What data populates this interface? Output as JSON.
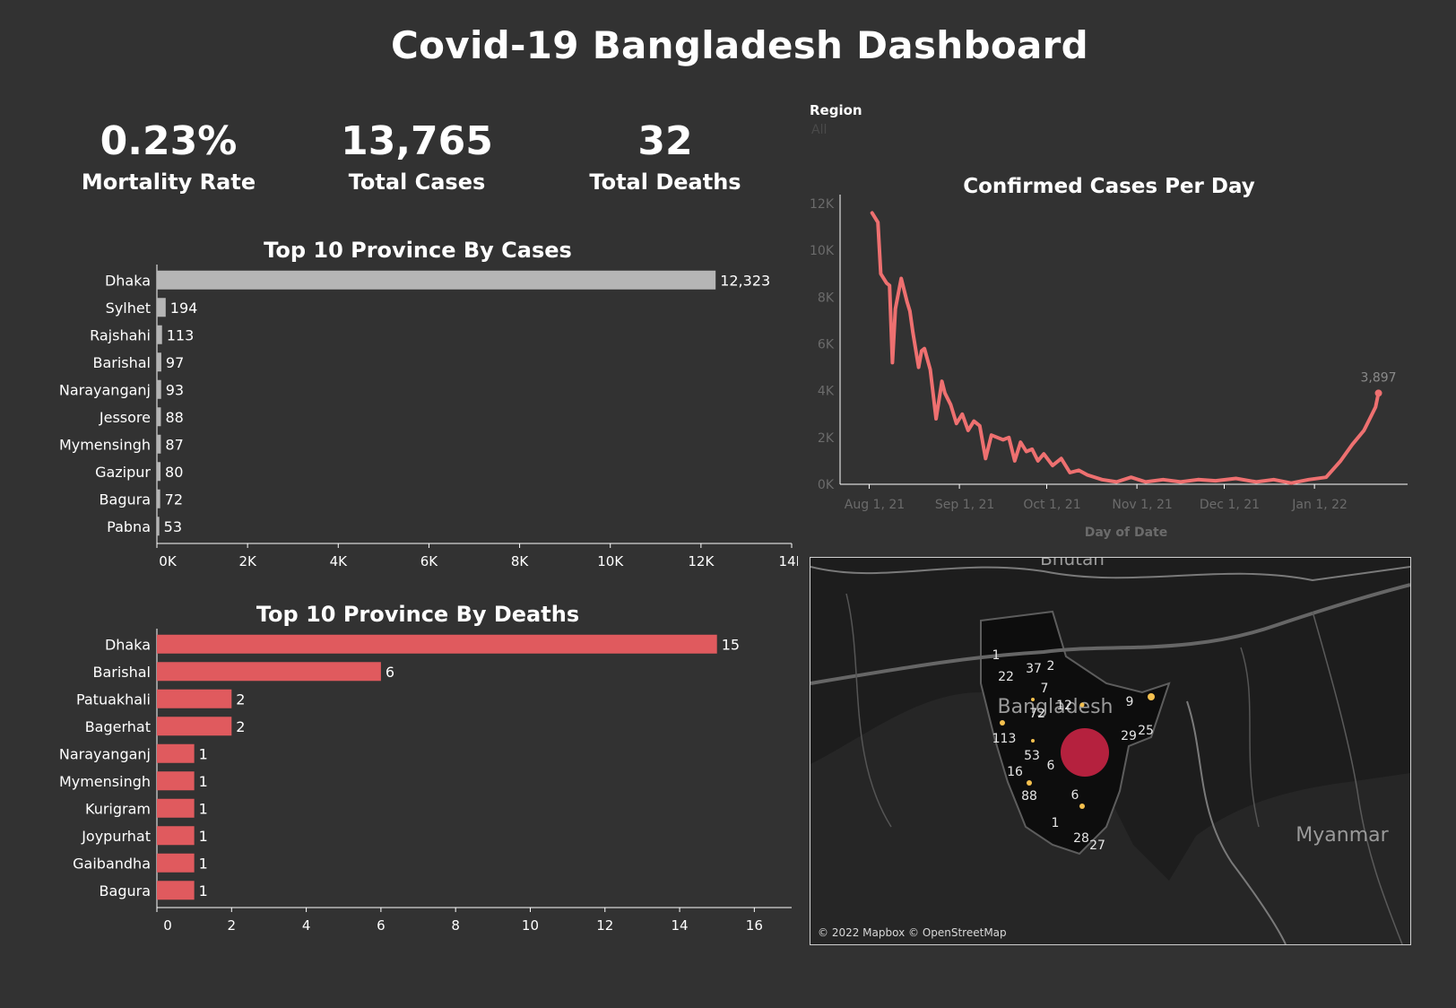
{
  "title": "Covid-19 Bangladesh Dashboard",
  "kpis": [
    {
      "value": "0.23%",
      "label": "Mortality Rate"
    },
    {
      "value": "13,765",
      "label": "Total Cases"
    },
    {
      "value": "32",
      "label": "Total Deaths"
    }
  ],
  "region_filter": {
    "label": "Region",
    "value": "All"
  },
  "colors": {
    "background": "#323232",
    "cases_bar": "#b5b5b5",
    "deaths_bar": "#e05a5e",
    "line": "#ee7070",
    "map_hotspot": "#b5213e",
    "map_point": "#f4c04e"
  },
  "map": {
    "credit": "© 2022 Mapbox © OpenStreetMap",
    "places": [
      "Bhutan",
      "Bangladesh",
      "Myanmar"
    ],
    "labels": [
      "1",
      "22",
      "37",
      "2",
      "7",
      "12",
      "9",
      "72",
      "113",
      "29",
      "25",
      "53",
      "6",
      "16",
      "88",
      "6",
      "1",
      "28",
      "27"
    ]
  },
  "chart_data": [
    {
      "type": "bar",
      "orientation": "horizontal",
      "title": "Top 10 Province By Cases",
      "categories": [
        "Dhaka",
        "Sylhet",
        "Rajshahi",
        "Barishal",
        "Narayanganj",
        "Jessore",
        "Mymensingh",
        "Gazipur",
        "Bagura",
        "Pabna"
      ],
      "values": [
        12323,
        194,
        113,
        97,
        93,
        88,
        87,
        80,
        72,
        53
      ],
      "value_labels": [
        "12,323",
        "194",
        "113",
        "97",
        "93",
        "88",
        "87",
        "80",
        "72",
        "53"
      ],
      "xlim": [
        0,
        14000
      ],
      "ticks": [
        "0K",
        "2K",
        "4K",
        "6K",
        "8K",
        "10K",
        "12K",
        "14K"
      ],
      "tick_values": [
        0,
        2000,
        4000,
        6000,
        8000,
        10000,
        12000,
        14000
      ]
    },
    {
      "type": "bar",
      "orientation": "horizontal",
      "title": "Top 10 Province By Deaths",
      "categories": [
        "Dhaka",
        "Barishal",
        "Patuakhali",
        "Bagerhat",
        "Narayanganj",
        "Mymensingh",
        "Kurigram",
        "Joypurhat",
        "Gaibandha",
        "Bagura"
      ],
      "values": [
        15,
        6,
        2,
        2,
        1,
        1,
        1,
        1,
        1,
        1
      ],
      "value_labels": [
        "15",
        "6",
        "2",
        "2",
        "1",
        "1",
        "1",
        "1",
        "1",
        "1"
      ],
      "xlim": [
        0,
        17
      ],
      "ticks": [
        "0",
        "2",
        "4",
        "6",
        "8",
        "10",
        "12",
        "14",
        "16"
      ],
      "tick_values": [
        0,
        2,
        4,
        6,
        8,
        10,
        12,
        14,
        16
      ]
    },
    {
      "type": "line",
      "title": "Confirmed Cases  Per Day",
      "xlabel": "Day of Date",
      "ylabel": "",
      "ylim": [
        0,
        12000
      ],
      "yticks": [
        "0K",
        "2K",
        "4K",
        "6K",
        "8K",
        "10K",
        "12K"
      ],
      "ytick_values": [
        0,
        2000,
        4000,
        6000,
        8000,
        10000,
        12000
      ],
      "xticks": [
        "Aug 1, 21",
        "Sep 1, 21",
        "Oct 1, 21",
        "Nov 1, 21",
        "Dec 1, 21",
        "Jan 1, 22"
      ],
      "xtick_dates": [
        "2021-08-01",
        "2021-09-01",
        "2021-10-01",
        "2021-11-01",
        "2021-12-01",
        "2022-01-01"
      ],
      "end_label": "3,897",
      "x": [
        "2021-08-02",
        "2021-08-04",
        "2021-08-05",
        "2021-08-07",
        "2021-08-08",
        "2021-08-09",
        "2021-08-10",
        "2021-08-12",
        "2021-08-14",
        "2021-08-15",
        "2021-08-16",
        "2021-08-18",
        "2021-08-19",
        "2021-08-20",
        "2021-08-22",
        "2021-08-24",
        "2021-08-26",
        "2021-08-27",
        "2021-08-29",
        "2021-08-31",
        "2021-09-02",
        "2021-09-04",
        "2021-09-06",
        "2021-09-08",
        "2021-09-10",
        "2021-09-12",
        "2021-09-14",
        "2021-09-16",
        "2021-09-18",
        "2021-09-20",
        "2021-09-22",
        "2021-09-24",
        "2021-09-26",
        "2021-09-28",
        "2021-09-30",
        "2021-10-03",
        "2021-10-06",
        "2021-10-09",
        "2021-10-12",
        "2021-10-15",
        "2021-10-20",
        "2021-10-25",
        "2021-10-30",
        "2021-11-04",
        "2021-11-10",
        "2021-11-16",
        "2021-11-22",
        "2021-11-28",
        "2021-12-05",
        "2021-12-12",
        "2021-12-18",
        "2021-12-24",
        "2021-12-30",
        "2022-01-05",
        "2022-01-10",
        "2022-01-14",
        "2022-01-18",
        "2022-01-20",
        "2022-01-22",
        "2022-01-23"
      ],
      "values": [
        11600,
        11200,
        9000,
        8600,
        8500,
        5200,
        7500,
        8800,
        7800,
        7400,
        6500,
        5000,
        5700,
        5800,
        4900,
        2800,
        4400,
        3900,
        3400,
        2600,
        3000,
        2300,
        2700,
        2500,
        1100,
        2100,
        2000,
        1900,
        2000,
        1000,
        1800,
        1400,
        1500,
        1000,
        1300,
        800,
        1100,
        500,
        600,
        400,
        200,
        100,
        300,
        100,
        200,
        100,
        200,
        150,
        250,
        100,
        200,
        50,
        200,
        300,
        1000,
        1700,
        2300,
        2800,
        3300,
        3897
      ]
    }
  ]
}
